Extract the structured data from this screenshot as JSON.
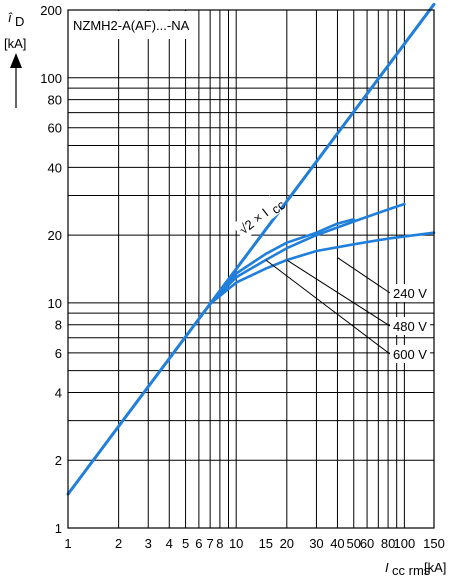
{
  "chart_data": {
    "type": "line",
    "title": "NZMH2-A(AF)...-NA",
    "x_scale": "log",
    "y_scale": "log",
    "xlim": [
      1,
      150
    ],
    "ylim": [
      1,
      200
    ],
    "xlabel": {
      "symbol": "I",
      "sub": "cc rms",
      "unit": "[kA]"
    },
    "ylabel": {
      "symbol": "î",
      "sub": "D",
      "unit": "[kA]"
    },
    "x_ticks": [
      1,
      2,
      3,
      4,
      5,
      6,
      7,
      8,
      10,
      15,
      20,
      30,
      40,
      50,
      60,
      80,
      100,
      150
    ],
    "x_tick_labels": [
      "1",
      "2",
      "3",
      "4",
      "5",
      "6",
      "7",
      "8",
      "10",
      "15",
      "20",
      "30",
      "40",
      "50",
      "60",
      "80",
      "100",
      "150"
    ],
    "y_ticks": [
      1,
      2,
      4,
      6,
      8,
      10,
      20,
      40,
      60,
      80,
      100,
      200
    ],
    "y_tick_labels": [
      "1",
      "2",
      "4",
      "6",
      "8",
      "10",
      "20",
      "40",
      "60",
      "80",
      "100",
      "200"
    ],
    "grid": true,
    "line_color": "#1f7fdb",
    "series": [
      {
        "name": "√2 × I",
        "name_sub": "cc",
        "points": [
          [
            1,
            1.414
          ],
          [
            150,
            212
          ]
        ]
      },
      {
        "name": "240 V",
        "points": [
          [
            7,
            9.9
          ],
          [
            10,
            12.3
          ],
          [
            15,
            14.2
          ],
          [
            20,
            15.5
          ],
          [
            30,
            17.0
          ],
          [
            50,
            18.2
          ],
          [
            80,
            19.3
          ],
          [
            150,
            20.5
          ]
        ]
      },
      {
        "name": "480 V",
        "points": [
          [
            7,
            9.9
          ],
          [
            10,
            13.0
          ],
          [
            15,
            15.5
          ],
          [
            20,
            17.5
          ],
          [
            30,
            20.0
          ],
          [
            50,
            23.0
          ],
          [
            80,
            26.0
          ],
          [
            100,
            27.5
          ]
        ]
      },
      {
        "name": "600 V",
        "points": [
          [
            7,
            9.9
          ],
          [
            10,
            13.5
          ],
          [
            15,
            16.5
          ],
          [
            20,
            18.5
          ],
          [
            30,
            20.5
          ],
          [
            40,
            22.5
          ],
          [
            50,
            23.5
          ]
        ]
      }
    ]
  }
}
